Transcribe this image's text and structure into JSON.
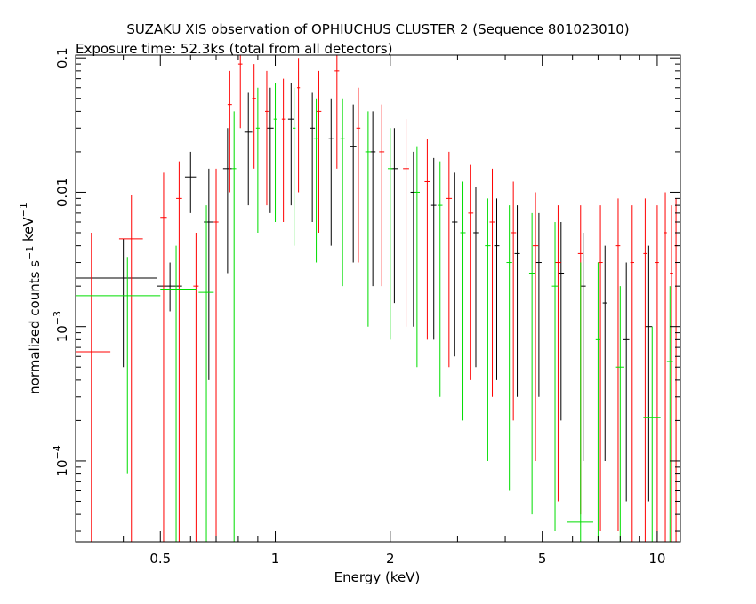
{
  "chart_data": {
    "type": "scatter",
    "title": "SUZAKU XIS observation of OPHIUCHUS CLUSTER 2 (Sequence 801023010)",
    "subtitle": "Exposure time: 52.3ks (total from all detectors)",
    "xlabel": "Energy (keV)",
    "ylabel": "normalized counts s^-1 keV^-1",
    "xscale": "log",
    "yscale": "log",
    "xlim": [
      0.3,
      11.5
    ],
    "ylim": [
      2.5e-05,
      0.105
    ],
    "x_ticks": [
      {
        "v": 0.5,
        "label": "0.5"
      },
      {
        "v": 1,
        "label": "1"
      },
      {
        "v": 2,
        "label": "2"
      },
      {
        "v": 5,
        "label": "5"
      },
      {
        "v": 10,
        "label": "10"
      }
    ],
    "y_ticks": [
      {
        "v": 0.0001,
        "base": "10",
        "exp": "−4"
      },
      {
        "v": 0.001,
        "base": "10",
        "exp": "−3"
      },
      {
        "v": 0.01,
        "label": "0.01"
      },
      {
        "v": 0.1,
        "label": "0.1"
      }
    ],
    "grid": false,
    "legend": "none",
    "series": [
      {
        "color": "#000000",
        "points": [
          {
            "x": 0.4,
            "xl": 0.3,
            "xh": 0.49,
            "y": 0.0023,
            "yl": 0.0005,
            "yh": 0.0045
          },
          {
            "x": 0.53,
            "xl": 0.49,
            "xh": 0.57,
            "y": 0.002,
            "yl": 0.0013,
            "yh": 0.003
          },
          {
            "x": 0.6,
            "xl": 0.58,
            "xh": 0.62,
            "y": 0.013,
            "yl": 0.007,
            "yh": 0.02
          },
          {
            "x": 0.67,
            "xl": 0.65,
            "xh": 0.69,
            "y": 0.006,
            "yl": 0.0004,
            "yh": 0.015
          },
          {
            "x": 0.75,
            "xl": 0.73,
            "xh": 0.77,
            "y": 0.015,
            "yl": 0.0025,
            "yh": 0.03
          },
          {
            "x": 0.85,
            "xl": 0.83,
            "xh": 0.87,
            "y": 0.028,
            "yl": 0.008,
            "yh": 0.055
          },
          {
            "x": 0.97,
            "xl": 0.95,
            "xh": 0.99,
            "y": 0.03,
            "yl": 0.007,
            "yh": 0.06
          },
          {
            "x": 1.1,
            "xl": 1.08,
            "xh": 1.12,
            "y": 0.035,
            "yl": 0.008,
            "yh": 0.065
          },
          {
            "x": 1.25,
            "xl": 1.23,
            "xh": 1.27,
            "y": 0.03,
            "yl": 0.006,
            "yh": 0.055
          },
          {
            "x": 1.4,
            "xl": 1.38,
            "xh": 1.42,
            "y": 0.025,
            "yl": 0.004,
            "yh": 0.05
          },
          {
            "x": 1.6,
            "xl": 1.57,
            "xh": 1.63,
            "y": 0.022,
            "yl": 0.003,
            "yh": 0.045
          },
          {
            "x": 1.8,
            "xl": 1.77,
            "xh": 1.83,
            "y": 0.02,
            "yl": 0.002,
            "yh": 0.04
          },
          {
            "x": 2.05,
            "xl": 2.01,
            "xh": 2.09,
            "y": 0.015,
            "yl": 0.0015,
            "yh": 0.03
          },
          {
            "x": 2.3,
            "xl": 2.26,
            "xh": 2.34,
            "y": 0.01,
            "yl": 0.001,
            "yh": 0.02
          },
          {
            "x": 2.6,
            "xl": 2.56,
            "xh": 2.64,
            "y": 0.008,
            "yl": 0.0008,
            "yh": 0.018
          },
          {
            "x": 2.95,
            "xl": 2.9,
            "xh": 3.0,
            "y": 0.006,
            "yl": 0.0006,
            "yh": 0.014
          },
          {
            "x": 3.35,
            "xl": 3.3,
            "xh": 3.4,
            "y": 0.005,
            "yl": 0.0005,
            "yh": 0.011
          },
          {
            "x": 3.8,
            "xl": 3.74,
            "xh": 3.86,
            "y": 0.004,
            "yl": 0.0004,
            "yh": 0.009
          },
          {
            "x": 4.3,
            "xl": 4.23,
            "xh": 4.37,
            "y": 0.0035,
            "yl": 0.0003,
            "yh": 0.008
          },
          {
            "x": 4.9,
            "xl": 4.82,
            "xh": 4.98,
            "y": 0.003,
            "yl": 0.0003,
            "yh": 0.007
          },
          {
            "x": 5.6,
            "xl": 5.5,
            "xh": 5.7,
            "y": 0.0025,
            "yl": 0.0002,
            "yh": 0.006
          },
          {
            "x": 6.4,
            "xl": 6.3,
            "xh": 6.5,
            "y": 0.002,
            "yl": 0.0001,
            "yh": 0.005
          },
          {
            "x": 7.3,
            "xl": 7.2,
            "xh": 7.4,
            "y": 0.0015,
            "yl": 0.0001,
            "yh": 0.004
          },
          {
            "x": 8.3,
            "xl": 8.15,
            "xh": 8.45,
            "y": 0.0008,
            "yl": 5e-05,
            "yh": 0.003
          },
          {
            "x": 9.5,
            "xl": 9.3,
            "xh": 9.7,
            "y": 0.001,
            "yl": 5e-05,
            "yh": 0.004
          }
        ]
      },
      {
        "color": "#ff0000",
        "points": [
          {
            "x": 0.33,
            "xl": 0.3,
            "xh": 0.37,
            "y": 0.00065,
            "yl": 2.5e-05,
            "yh": 0.005
          },
          {
            "x": 0.42,
            "xl": 0.39,
            "xh": 0.45,
            "y": 0.0045,
            "yl": 2.5e-05,
            "yh": 0.0095
          },
          {
            "x": 0.51,
            "xl": 0.5,
            "xh": 0.52,
            "y": 0.0065,
            "yl": 2.5e-05,
            "yh": 0.014
          },
          {
            "x": 0.56,
            "xl": 0.55,
            "xh": 0.57,
            "y": 0.009,
            "yl": 2.5e-05,
            "yh": 0.017
          },
          {
            "x": 0.62,
            "xl": 0.61,
            "xh": 0.63,
            "y": 0.002,
            "yl": 2.5e-05,
            "yh": 0.005
          },
          {
            "x": 0.7,
            "xl": 0.69,
            "xh": 0.71,
            "y": 0.006,
            "yl": 2.5e-05,
            "yh": 0.015
          },
          {
            "x": 0.76,
            "xl": 0.75,
            "xh": 0.77,
            "y": 0.045,
            "yl": 0.01,
            "yh": 0.08
          },
          {
            "x": 0.81,
            "xl": 0.8,
            "xh": 0.82,
            "y": 0.09,
            "yl": 0.03,
            "yh": 0.105
          },
          {
            "x": 0.88,
            "xl": 0.87,
            "xh": 0.89,
            "y": 0.05,
            "yl": 0.015,
            "yh": 0.09
          },
          {
            "x": 0.95,
            "xl": 0.94,
            "xh": 0.96,
            "y": 0.04,
            "yl": 0.008,
            "yh": 0.08
          },
          {
            "x": 1.05,
            "xl": 1.04,
            "xh": 1.06,
            "y": 0.035,
            "yl": 0.006,
            "yh": 0.07
          },
          {
            "x": 1.15,
            "xl": 1.14,
            "xh": 1.16,
            "y": 0.06,
            "yl": 0.01,
            "yh": 0.1
          },
          {
            "x": 1.3,
            "xl": 1.28,
            "xh": 1.32,
            "y": 0.04,
            "yl": 0.005,
            "yh": 0.08
          },
          {
            "x": 1.45,
            "xl": 1.43,
            "xh": 1.47,
            "y": 0.08,
            "yl": 0.015,
            "yh": 0.105
          },
          {
            "x": 1.65,
            "xl": 1.63,
            "xh": 1.67,
            "y": 0.03,
            "yl": 0.003,
            "yh": 0.06
          },
          {
            "x": 1.9,
            "xl": 1.87,
            "xh": 1.93,
            "y": 0.02,
            "yl": 0.002,
            "yh": 0.045
          },
          {
            "x": 2.2,
            "xl": 2.16,
            "xh": 2.24,
            "y": 0.015,
            "yl": 0.001,
            "yh": 0.035
          },
          {
            "x": 2.5,
            "xl": 2.46,
            "xh": 2.54,
            "y": 0.012,
            "yl": 0.0008,
            "yh": 0.025
          },
          {
            "x": 2.85,
            "xl": 2.8,
            "xh": 2.9,
            "y": 0.009,
            "yl": 0.0005,
            "yh": 0.02
          },
          {
            "x": 3.25,
            "xl": 3.2,
            "xh": 3.3,
            "y": 0.007,
            "yl": 0.0004,
            "yh": 0.016
          },
          {
            "x": 3.7,
            "xl": 3.64,
            "xh": 3.76,
            "y": 0.006,
            "yl": 0.0003,
            "yh": 0.015
          },
          {
            "x": 4.2,
            "xl": 4.13,
            "xh": 4.27,
            "y": 0.005,
            "yl": 0.0002,
            "yh": 0.012
          },
          {
            "x": 4.8,
            "xl": 4.72,
            "xh": 4.88,
            "y": 0.004,
            "yl": 0.0001,
            "yh": 0.01
          },
          {
            "x": 5.5,
            "xl": 5.4,
            "xh": 5.6,
            "y": 0.003,
            "yl": 5e-05,
            "yh": 0.008
          },
          {
            "x": 6.3,
            "xl": 6.2,
            "xh": 6.4,
            "y": 0.0035,
            "yl": 4e-05,
            "yh": 0.008
          },
          {
            "x": 7.1,
            "xl": 7.0,
            "xh": 7.2,
            "y": 0.003,
            "yl": 3e-05,
            "yh": 0.008
          },
          {
            "x": 7.9,
            "xl": 7.8,
            "xh": 8.0,
            "y": 0.004,
            "yl": 3e-05,
            "yh": 0.009
          },
          {
            "x": 8.6,
            "xl": 8.5,
            "xh": 8.7,
            "y": 0.003,
            "yl": 2.5e-05,
            "yh": 0.008
          },
          {
            "x": 9.3,
            "xl": 9.2,
            "xh": 9.4,
            "y": 0.0035,
            "yl": 2.5e-05,
            "yh": 0.009
          },
          {
            "x": 10.0,
            "xl": 9.9,
            "xh": 10.1,
            "y": 0.003,
            "yl": 2.5e-05,
            "yh": 0.008
          },
          {
            "x": 10.5,
            "xl": 10.4,
            "xh": 10.6,
            "y": 0.005,
            "yl": 2.5e-05,
            "yh": 0.01
          },
          {
            "x": 10.9,
            "xl": 10.8,
            "xh": 11.0,
            "y": 0.0025,
            "yl": 2.5e-05,
            "yh": 0.008
          },
          {
            "x": 11.2,
            "xl": 11.1,
            "xh": 11.3,
            "y": 0.004,
            "yl": 2.5e-05,
            "yh": 0.009
          }
        ]
      },
      {
        "color": "#00dd00",
        "points": [
          {
            "x": 0.41,
            "xl": 0.3,
            "xh": 0.5,
            "y": 0.0017,
            "yl": 8e-05,
            "yh": 0.0033
          },
          {
            "x": 0.55,
            "xl": 0.5,
            "xh": 0.62,
            "y": 0.0019,
            "yl": 2.5e-05,
            "yh": 0.004
          },
          {
            "x": 0.66,
            "xl": 0.63,
            "xh": 0.69,
            "y": 0.0018,
            "yl": 2.5e-05,
            "yh": 0.008
          },
          {
            "x": 0.78,
            "xl": 0.77,
            "xh": 0.79,
            "y": 0.015,
            "yl": 2.5e-05,
            "yh": 0.04
          },
          {
            "x": 0.9,
            "xl": 0.89,
            "xh": 0.91,
            "y": 0.03,
            "yl": 0.005,
            "yh": 0.06
          },
          {
            "x": 1.0,
            "xl": 0.99,
            "xh": 1.01,
            "y": 0.035,
            "yl": 0.006,
            "yh": 0.065
          },
          {
            "x": 1.12,
            "xl": 1.11,
            "xh": 1.13,
            "y": 0.03,
            "yl": 0.004,
            "yh": 0.06
          },
          {
            "x": 1.28,
            "xl": 1.26,
            "xh": 1.3,
            "y": 0.025,
            "yl": 0.003,
            "yh": 0.05
          },
          {
            "x": 1.5,
            "xl": 1.48,
            "xh": 1.52,
            "y": 0.025,
            "yl": 0.002,
            "yh": 0.05
          },
          {
            "x": 1.75,
            "xl": 1.72,
            "xh": 1.78,
            "y": 0.02,
            "yl": 0.001,
            "yh": 0.04
          },
          {
            "x": 2.0,
            "xl": 1.97,
            "xh": 2.03,
            "y": 0.015,
            "yl": 0.0008,
            "yh": 0.03
          },
          {
            "x": 2.35,
            "xl": 2.31,
            "xh": 2.39,
            "y": 0.01,
            "yl": 0.0005,
            "yh": 0.022
          },
          {
            "x": 2.7,
            "xl": 2.66,
            "xh": 2.74,
            "y": 0.008,
            "yl": 0.0003,
            "yh": 0.017
          },
          {
            "x": 3.1,
            "xl": 3.05,
            "xh": 3.15,
            "y": 0.005,
            "yl": 0.0002,
            "yh": 0.012
          },
          {
            "x": 3.6,
            "xl": 3.54,
            "xh": 3.66,
            "y": 0.004,
            "yl": 0.0001,
            "yh": 0.009
          },
          {
            "x": 4.1,
            "xl": 4.03,
            "xh": 4.17,
            "y": 0.003,
            "yl": 6e-05,
            "yh": 0.008
          },
          {
            "x": 4.7,
            "xl": 4.62,
            "xh": 4.78,
            "y": 0.0025,
            "yl": 4e-05,
            "yh": 0.007
          },
          {
            "x": 5.4,
            "xl": 5.3,
            "xh": 5.5,
            "y": 0.002,
            "yl": 3e-05,
            "yh": 0.006
          },
          {
            "x": 6.3,
            "xl": 5.8,
            "xh": 6.8,
            "y": 3.5e-05,
            "yl": 2.5e-05,
            "yh": 0.003
          },
          {
            "x": 7.0,
            "xl": 6.9,
            "xh": 7.1,
            "y": 0.0008,
            "yl": 2.5e-05,
            "yh": 0.003
          },
          {
            "x": 8.0,
            "xl": 7.8,
            "xh": 8.2,
            "y": 0.0005,
            "yl": 2.5e-05,
            "yh": 0.002
          },
          {
            "x": 9.7,
            "xl": 9.2,
            "xh": 10.2,
            "y": 0.00021,
            "yl": 2.5e-05,
            "yh": 0.001
          },
          {
            "x": 10.8,
            "xl": 10.6,
            "xh": 11.0,
            "y": 0.00055,
            "yl": 2.5e-05,
            "yh": 0.002
          }
        ]
      }
    ]
  }
}
